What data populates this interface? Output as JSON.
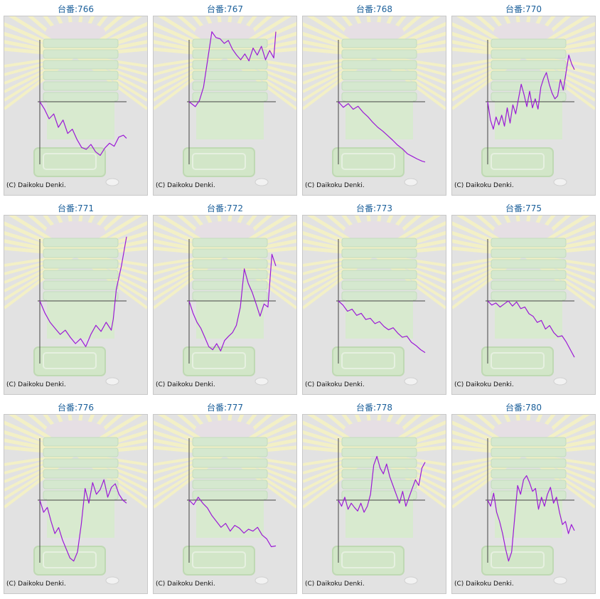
{
  "colors": {
    "title": "#1a5f9a",
    "line": "#9b19d6",
    "axis": "#444444",
    "panel_bg": "#e2e2e2"
  },
  "copyright": "(C) Daikoku Denki.",
  "chart_data": [
    {
      "type": "line",
      "title": "台番:766",
      "x": [
        0,
        6,
        12,
        18,
        24,
        30,
        36,
        42,
        48,
        54,
        60,
        66,
        72,
        78,
        84,
        90,
        96,
        102,
        108,
        112
      ],
      "values": [
        0,
        -12,
        -28,
        -20,
        -42,
        -30,
        -52,
        -45,
        -62,
        -75,
        -78,
        -70,
        -82,
        -88,
        -76,
        -68,
        -73,
        -58,
        -55,
        -60
      ],
      "xlim": [
        0,
        112
      ],
      "ylim": [
        -105,
        122
      ]
    },
    {
      "type": "line",
      "title": "台番:767",
      "x": [
        0,
        6,
        10,
        14,
        18,
        22,
        26,
        30,
        34,
        38,
        42,
        46,
        50,
        54,
        58,
        62,
        66,
        70,
        74,
        78,
        82,
        84
      ],
      "values": [
        0,
        -8,
        2,
        25,
        72,
        120,
        110,
        108,
        100,
        105,
        90,
        80,
        72,
        82,
        70,
        92,
        80,
        95,
        72,
        88,
        75,
        120
      ],
      "xlim": [
        0,
        84
      ],
      "ylim": [
        -105,
        122
      ]
    },
    {
      "type": "line",
      "title": "台番:768",
      "x": [
        0,
        5,
        10,
        15,
        20,
        25,
        30,
        35,
        40,
        45,
        50,
        55,
        60,
        65,
        70,
        75,
        80,
        85,
        88
      ],
      "values": [
        0,
        -15,
        -5,
        -20,
        -12,
        -28,
        -40,
        -55,
        -68,
        -78,
        -90,
        -102,
        -115,
        -125,
        -138,
        -145,
        -152,
        -158,
        -160
      ],
      "xlim": [
        0,
        88
      ],
      "ylim": [
        -170,
        122
      ]
    },
    {
      "type": "line",
      "title": "台番:770",
      "x": [
        0,
        3,
        6,
        9,
        12,
        15,
        18,
        21,
        24,
        27,
        30,
        33,
        36,
        39,
        42,
        45,
        48,
        51,
        54,
        57,
        60,
        63,
        66,
        69,
        72,
        75,
        78,
        81,
        84,
        87,
        90,
        93
      ],
      "values": [
        0,
        -30,
        -45,
        -25,
        -38,
        -22,
        -40,
        -10,
        -35,
        -5,
        -20,
        5,
        30,
        12,
        -8,
        18,
        -10,
        5,
        -12,
        25,
        40,
        50,
        30,
        15,
        5,
        10,
        38,
        20,
        50,
        80,
        65,
        55
      ],
      "xlim": [
        0,
        93
      ],
      "ylim": [
        -105,
        122
      ]
    },
    {
      "type": "line",
      "title": "台番:771",
      "x": [
        0,
        5,
        10,
        15,
        20,
        25,
        30,
        35,
        40,
        45,
        50,
        55,
        60,
        65,
        70,
        72,
        75,
        80,
        85
      ],
      "values": [
        0,
        -20,
        -35,
        -45,
        -55,
        -48,
        -60,
        -70,
        -62,
        -75,
        -55,
        -40,
        -50,
        -35,
        -48,
        -30,
        20,
        60,
        110
      ],
      "xlim": [
        0,
        85
      ],
      "ylim": [
        -105,
        122
      ]
    },
    {
      "type": "line",
      "title": "台番:772",
      "x": [
        0,
        5,
        10,
        15,
        20,
        25,
        30,
        35,
        40,
        45,
        50,
        55,
        60,
        65,
        70,
        75,
        80,
        85,
        90,
        95,
        100,
        105,
        110
      ],
      "values": [
        0,
        -20,
        -35,
        -45,
        -60,
        -75,
        -80,
        -70,
        -82,
        -65,
        -58,
        -52,
        -40,
        -10,
        55,
        30,
        15,
        -5,
        -25,
        -5,
        -10,
        80,
        60
      ],
      "xlim": [
        0,
        110
      ],
      "ylim": [
        -105,
        122
      ]
    },
    {
      "type": "line",
      "title": "台番:773",
      "x": [
        0,
        4,
        8,
        12,
        16,
        20,
        24,
        28,
        32,
        36,
        40,
        44,
        48,
        52,
        56,
        60,
        64,
        68,
        72,
        76
      ],
      "values": [
        0,
        -10,
        -25,
        -20,
        -35,
        -30,
        -45,
        -42,
        -55,
        -50,
        -62,
        -70,
        -65,
        -78,
        -88,
        -85,
        -100,
        -108,
        -118,
        -125
      ],
      "xlim": [
        0,
        76
      ],
      "ylim": [
        -155,
        122
      ]
    },
    {
      "type": "line",
      "title": "台番:775",
      "x": [
        0,
        5,
        10,
        15,
        20,
        25,
        30,
        35,
        40,
        45,
        50,
        55,
        60,
        65,
        70,
        75,
        80,
        85,
        90,
        95,
        100,
        105
      ],
      "values": [
        0,
        -8,
        -4,
        -12,
        -6,
        0,
        -10,
        -2,
        -15,
        -12,
        -25,
        -30,
        -42,
        -38,
        -55,
        -48,
        -62,
        -70,
        -68,
        -80,
        -95,
        -110
      ],
      "xlim": [
        0,
        105
      ],
      "ylim": [
        -125,
        122
      ]
    },
    {
      "type": "line",
      "title": "台番:776",
      "x": [
        0,
        4,
        8,
        12,
        16,
        20,
        24,
        28,
        32,
        36,
        40,
        44,
        48,
        52,
        56,
        60,
        64,
        68,
        72,
        76,
        80,
        84,
        88,
        92
      ],
      "values": [
        0,
        -20,
        -12,
        -35,
        -55,
        -45,
        -65,
        -80,
        -95,
        -100,
        -85,
        -40,
        20,
        -5,
        30,
        10,
        18,
        35,
        5,
        22,
        28,
        10,
        0,
        -5
      ],
      "xlim": [
        0,
        92
      ],
      "ylim": [
        -105,
        122
      ]
    },
    {
      "type": "line",
      "title": "台番:777",
      "x": [
        0,
        5,
        10,
        15,
        20,
        25,
        30,
        35,
        40,
        45,
        50,
        55,
        60,
        65,
        70,
        75,
        80,
        85,
        90,
        95
      ],
      "values": [
        0,
        -12,
        5,
        -8,
        -20,
        -40,
        -55,
        -70,
        -60,
        -80,
        -65,
        -72,
        -85,
        -75,
        -80,
        -70,
        -90,
        -100,
        -120,
        -118
      ],
      "xlim": [
        0,
        95
      ],
      "ylim": [
        -165,
        122
      ]
    },
    {
      "type": "line",
      "title": "台番:778",
      "x": [
        0,
        4,
        8,
        12,
        16,
        20,
        24,
        28,
        32,
        36,
        40,
        44,
        48,
        52,
        56,
        60,
        64,
        68,
        72,
        76,
        80,
        84,
        88,
        92,
        96,
        100,
        104,
        108
      ],
      "values": [
        0,
        -10,
        5,
        -15,
        -5,
        -12,
        -18,
        -5,
        -20,
        -10,
        10,
        60,
        75,
        55,
        45,
        62,
        40,
        25,
        10,
        -5,
        15,
        -10,
        5,
        20,
        35,
        25,
        55,
        65
      ],
      "xlim": [
        0,
        108
      ],
      "ylim": [
        -105,
        122
      ]
    },
    {
      "type": "line",
      "title": "台番:780",
      "x": [
        0,
        4,
        8,
        12,
        16,
        20,
        24,
        28,
        32,
        36,
        40,
        44,
        48,
        52,
        56,
        60,
        64,
        68,
        72,
        76,
        80,
        84,
        88,
        92,
        96,
        100,
        104,
        108,
        112,
        116
      ],
      "values": [
        0,
        -10,
        12,
        -20,
        -35,
        -55,
        -80,
        -100,
        -85,
        -30,
        25,
        10,
        35,
        42,
        30,
        15,
        20,
        -15,
        5,
        -10,
        10,
        22,
        -5,
        5,
        -20,
        -40,
        -35,
        -55,
        -40,
        -50
      ],
      "xlim": [
        0,
        116
      ],
      "ylim": [
        -105,
        122
      ]
    }
  ]
}
